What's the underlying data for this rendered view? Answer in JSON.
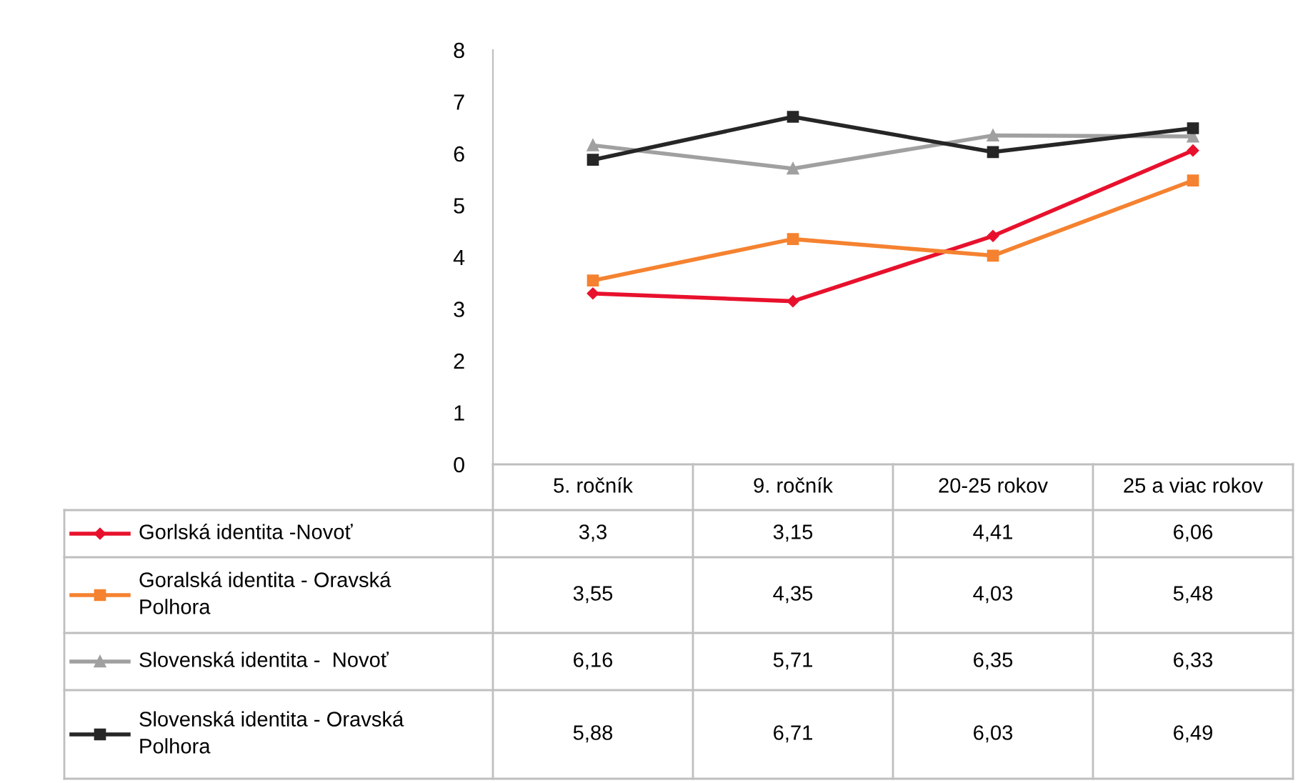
{
  "chart_data": {
    "type": "line",
    "categories": [
      "5. ročník",
      "9. ročník",
      "20-25 rokov",
      "25 a viac rokov"
    ],
    "ylim": [
      0,
      8
    ],
    "yticks": [
      0,
      1,
      2,
      3,
      4,
      5,
      6,
      7,
      8
    ],
    "grid": false,
    "legend": "bottom",
    "series": [
      {
        "name": "Gorlská identita -Novoť",
        "color": "#e8112d",
        "marker": "diamond",
        "values": [
          3.3,
          3.15,
          4.41,
          6.06
        ],
        "value_labels": [
          "3,3",
          "3,15",
          "4,41",
          "6,06"
        ]
      },
      {
        "name": "Goralská identita - Oravská\nPolhora",
        "color": "#f58230",
        "marker": "square",
        "values": [
          3.55,
          4.35,
          4.03,
          5.48
        ],
        "value_labels": [
          "3,55",
          "4,35",
          "4,03",
          "5,48"
        ]
      },
      {
        "name": "Slovenská identita -  Novoť",
        "color": "#a0a0a0",
        "marker": "triangle",
        "values": [
          6.16,
          5.71,
          6.35,
          6.33
        ],
        "value_labels": [
          "6,16",
          "5,71",
          "6,35",
          "6,33"
        ]
      },
      {
        "name": "Slovenská identita - Oravská\nPolhora",
        "color": "#262626",
        "marker": "square",
        "values": [
          5.88,
          6.71,
          6.03,
          6.49
        ],
        "value_labels": [
          "5,88",
          "6,71",
          "6,03",
          "6,49"
        ]
      }
    ]
  }
}
